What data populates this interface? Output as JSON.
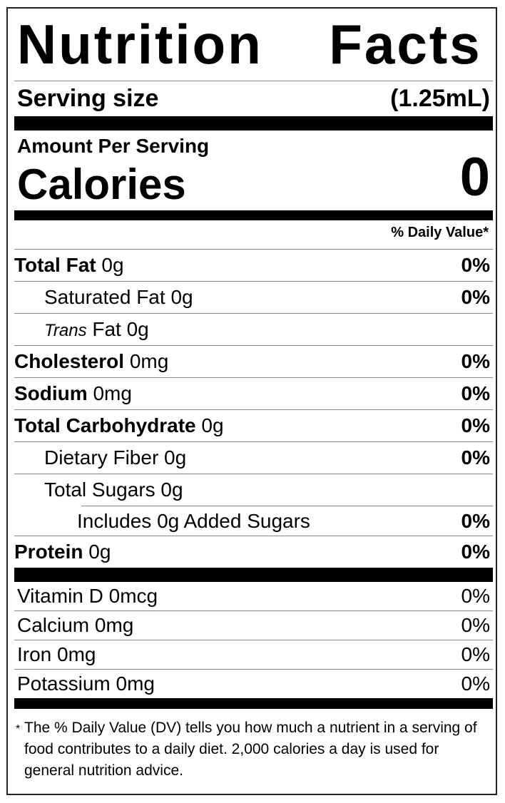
{
  "title": "Nutrition Facts",
  "serving": {
    "label": "Serving size",
    "value": "(1.25mL)"
  },
  "amount_per_serving": "Amount Per Serving",
  "calories": {
    "label": "Calories",
    "value": "0"
  },
  "dv_header": "% Daily Value*",
  "nutrients": [
    {
      "name": "Total Fat",
      "amount": "0g",
      "dv": "0%"
    },
    {
      "name": "Saturated Fat",
      "amount": "0g",
      "dv": "0%"
    },
    {
      "name_italic": "Trans",
      "name": "Fat",
      "amount": "0g"
    },
    {
      "name": "Cholesterol",
      "amount": "0mg",
      "dv": "0%"
    },
    {
      "name": "Sodium",
      "amount": "0mg",
      "dv": "0%"
    },
    {
      "name": "Total Carbohydrate",
      "amount": "0g",
      "dv": "0%"
    },
    {
      "name": "Dietary Fiber",
      "amount": "0g",
      "dv": "0%"
    },
    {
      "name": "Total Sugars",
      "amount": "0g"
    },
    {
      "text": "Includes 0g Added Sugars",
      "dv": "0%"
    },
    {
      "name": "Protein",
      "amount": "0g",
      "dv": "0%"
    }
  ],
  "vitamins": [
    {
      "text": "Vitamin D 0mcg",
      "dv": "0%"
    },
    {
      "text": "Calcium 0mg",
      "dv": "0%"
    },
    {
      "text": "Iron 0mg",
      "dv": "0%"
    },
    {
      "text": "Potassium 0mg",
      "dv": "0%"
    }
  ],
  "footnote": {
    "star": "*",
    "text": "The % Daily Value (DV) tells you how much a nutrient in a serving of food contributes to a daily diet. 2,000 calories a day is used for general nutrition advice."
  }
}
